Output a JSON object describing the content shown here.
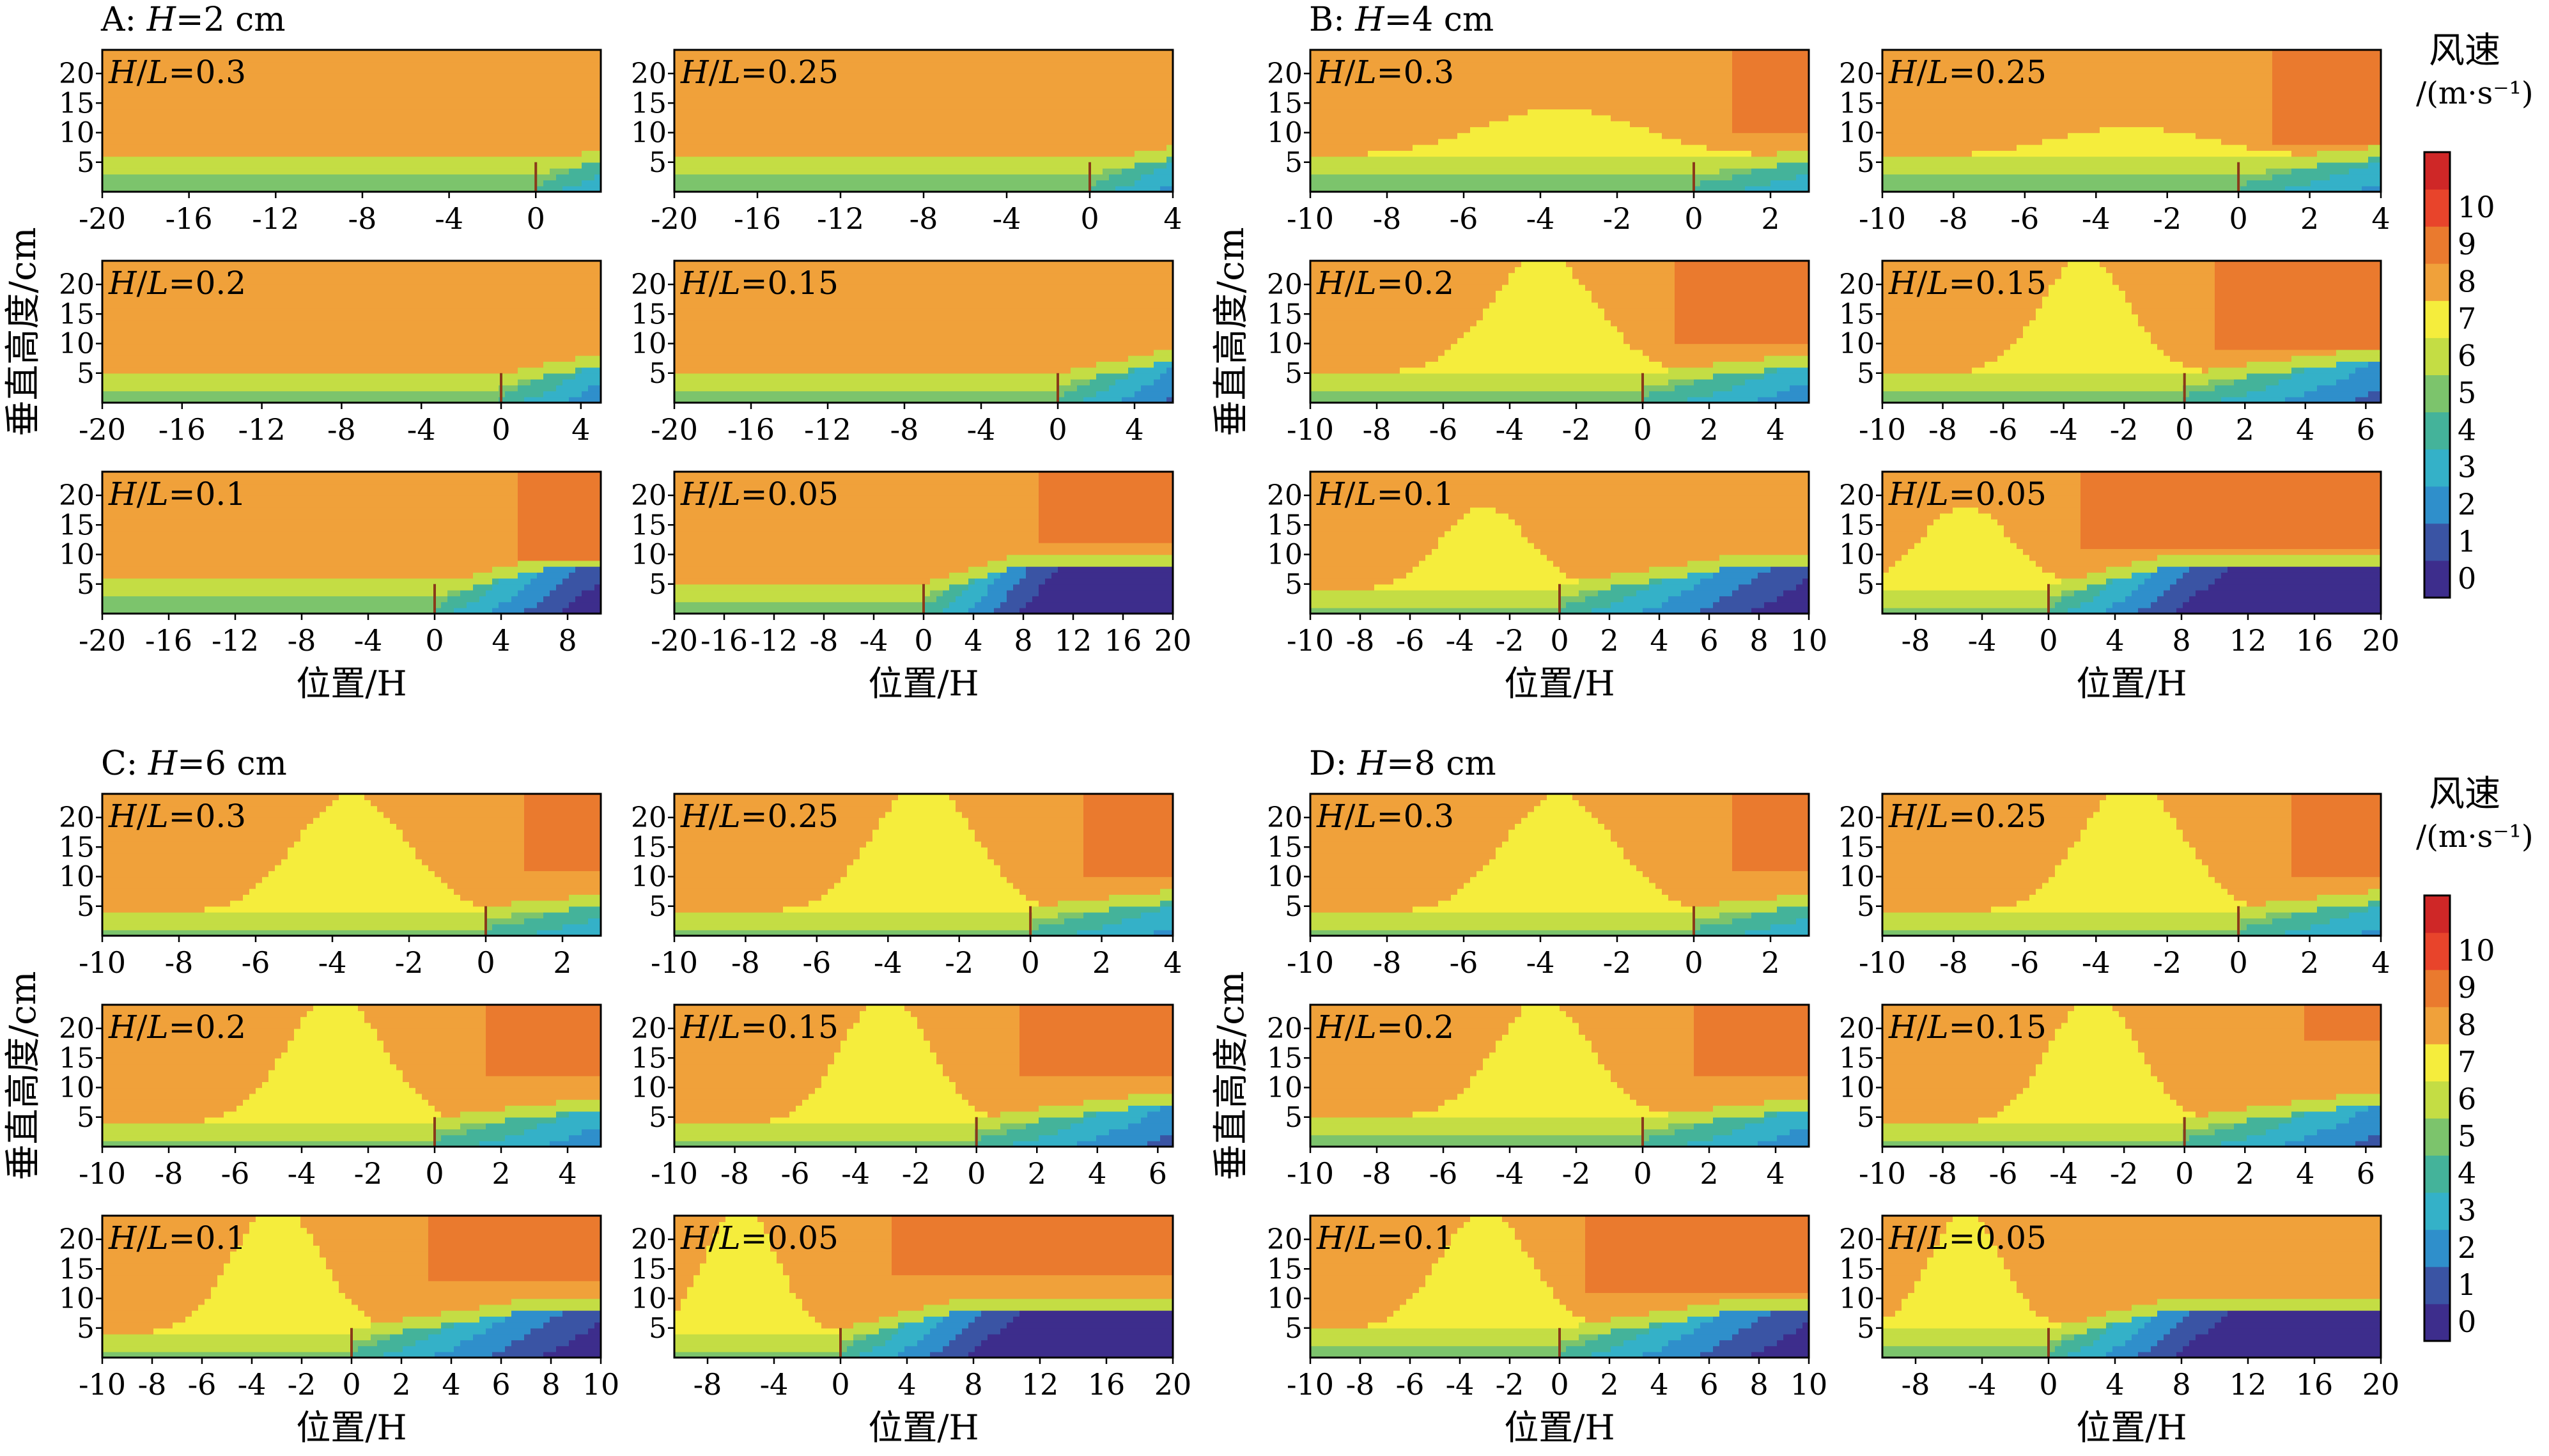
{
  "legend": {
    "title_line1": "风速",
    "title_line2": "/(m·s⁻¹)",
    "levels": [
      "0",
      "1",
      "2",
      "3",
      "4",
      "5",
      "6",
      "7",
      "8",
      "9",
      "10"
    ],
    "colors": [
      "#3d2d8c",
      "#3a54a4",
      "#2f8fcb",
      "#34b1c8",
      "#44b39a",
      "#7cc46c",
      "#c4dd44",
      "#f5ed3c",
      "#f0a13a",
      "#ea7a2e",
      "#e8442b",
      "#cf2727"
    ]
  },
  "chart_data": [
    {
      "type": "heatmap",
      "group": "A",
      "title": "A: H=2 cm",
      "ylabel": "垂直高度/cm",
      "xlabel": "位置/H",
      "yticks": [
        "5",
        "10",
        "15",
        "20"
      ],
      "ylim": [
        0,
        24
      ],
      "panels": [
        {
          "label": "H/L=0.3",
          "xlim": [
            -20,
            3
          ],
          "xticks": [
            "-20",
            "-16",
            "-12",
            "-8",
            "-4",
            "0"
          ],
          "fence_x": 0,
          "base_band_top": 6,
          "hill": {
            "center": -8,
            "width": 10,
            "amp": 0
          },
          "hot_x0": 99,
          "hot_y0": 30
        },
        {
          "label": "H/L=0.25",
          "xlim": [
            -20,
            4
          ],
          "xticks": [
            "-20",
            "-16",
            "-12",
            "-8",
            "-4",
            "0",
            "4"
          ],
          "fence_x": 0,
          "base_band_top": 6,
          "hill": {
            "center": -8,
            "width": 10,
            "amp": 0
          },
          "hot_x0": 99,
          "hot_y0": 30
        },
        {
          "label": "H/L=0.2",
          "xlim": [
            -20,
            5
          ],
          "xticks": [
            "-20",
            "-16",
            "-12",
            "-8",
            "-4",
            "0",
            "4"
          ],
          "fence_x": 0,
          "base_band_top": 5,
          "hill": {
            "center": -8,
            "width": 10,
            "amp": 0
          },
          "hot_x0": 99,
          "hot_y0": 30
        },
        {
          "label": "H/L=0.15",
          "xlim": [
            -20,
            6
          ],
          "xticks": [
            "-20",
            "-16",
            "-12",
            "-8",
            "-4",
            "0",
            "4"
          ],
          "fence_x": 0,
          "base_band_top": 5,
          "hill": {
            "center": -8,
            "width": 10,
            "amp": 0
          },
          "hot_x0": 99,
          "hot_y0": 30
        },
        {
          "label": "H/L=0.1",
          "xlim": [
            -20,
            10
          ],
          "xticks": [
            "-20",
            "-16",
            "-12",
            "-8",
            "-4",
            "0",
            "4",
            "8"
          ],
          "fence_x": 0,
          "base_band_top": 6,
          "hill": {
            "center": -8,
            "width": 10,
            "amp": 0
          },
          "hot_x0": 5,
          "hot_y0": 9
        },
        {
          "label": "H/L=0.05",
          "xlim": [
            -20,
            20
          ],
          "xticks": [
            "-20",
            "-16",
            "-12",
            "-8",
            "-4",
            "0",
            "4",
            "8",
            "12",
            "16",
            "20"
          ],
          "fence_x": 0,
          "base_band_top": 5,
          "hill": {
            "center": -8,
            "width": 10,
            "amp": 0
          },
          "hot_x0": 9,
          "hot_y0": 12
        }
      ]
    },
    {
      "type": "heatmap",
      "group": "B",
      "title": "B: H=4 cm",
      "ylabel": "垂直高度/cm",
      "xlabel": "位置/H",
      "yticks": [
        "5",
        "10",
        "15",
        "20"
      ],
      "ylim": [
        0,
        24
      ],
      "panels": [
        {
          "label": "H/L=0.3",
          "xlim": [
            -10,
            3
          ],
          "xticks": [
            "-10",
            "-8",
            "-6",
            "-4",
            "-2",
            "0",
            "2"
          ],
          "fence_x": 0,
          "base_band_top": 6,
          "hill": {
            "center": -3.5,
            "width": 3,
            "amp": 8
          },
          "hot_x0": 1,
          "hot_y0": 10
        },
        {
          "label": "H/L=0.25",
          "xlim": [
            -10,
            4
          ],
          "xticks": [
            "-10",
            "-8",
            "-6",
            "-4",
            "-2",
            "0",
            "2",
            "4"
          ],
          "fence_x": 0,
          "base_band_top": 6,
          "hill": {
            "center": -3,
            "width": 3,
            "amp": 5
          },
          "hot_x0": 1,
          "hot_y0": 8
        },
        {
          "label": "H/L=0.2",
          "xlim": [
            -10,
            5
          ],
          "xticks": [
            "-10",
            "-8",
            "-6",
            "-4",
            "-2",
            "0",
            "2",
            "4"
          ],
          "fence_x": 0,
          "base_band_top": 5,
          "hill": {
            "center": -3,
            "width": 2.2,
            "amp": 20
          },
          "hot_x0": 1,
          "hot_y0": 10
        },
        {
          "label": "H/L=0.15",
          "xlim": [
            -10,
            6.5
          ],
          "xticks": [
            "-10",
            "-8",
            "-6",
            "-4",
            "-2",
            "0",
            "2",
            "4",
            "6"
          ],
          "fence_x": 0,
          "base_band_top": 5,
          "hill": {
            "center": -3.3,
            "width": 2,
            "amp": 20
          },
          "hot_x0": 1,
          "hot_y0": 9
        },
        {
          "label": "H/L=0.1",
          "xlim": [
            -10,
            10
          ],
          "xticks": [
            "-10",
            "-8",
            "-6",
            "-4",
            "-2",
            "0",
            "2",
            "4",
            "6",
            "8",
            "10"
          ],
          "fence_x": 0,
          "base_band_top": 4,
          "hill": {
            "center": -3,
            "width": 2.5,
            "amp": 14
          },
          "hot_x0": 99,
          "hot_y0": 30
        },
        {
          "label": "H/L=0.05",
          "xlim": [
            -10,
            20
          ],
          "xticks": [
            "-8",
            "-4",
            "0",
            "4",
            "8",
            "12",
            "16",
            "20"
          ],
          "fence_x": 0,
          "base_band_top": 4,
          "hill": {
            "center": -5,
            "width": 4,
            "amp": 14
          },
          "hot_x0": 2,
          "hot_y0": 11
        }
      ]
    },
    {
      "type": "heatmap",
      "group": "C",
      "title": "C: H=6 cm",
      "ylabel": "垂直高度/cm",
      "xlabel": "位置/H",
      "yticks": [
        "5",
        "10",
        "15",
        "20"
      ],
      "ylim": [
        0,
        24
      ],
      "panels": [
        {
          "label": "H/L=0.3",
          "xlim": [
            -10,
            3
          ],
          "xticks": [
            "-10",
            "-8",
            "-6",
            "-4",
            "-2",
            "0",
            "2"
          ],
          "fence_x": 0,
          "base_band_top": 4,
          "hill": {
            "center": -3.5,
            "width": 2,
            "amp": 20
          },
          "hot_x0": 1,
          "hot_y0": 11
        },
        {
          "label": "H/L=0.25",
          "xlim": [
            -10,
            4
          ],
          "xticks": [
            "-10",
            "-8",
            "-6",
            "-4",
            "-2",
            "0",
            "2",
            "4"
          ],
          "fence_x": 0,
          "base_band_top": 4,
          "hill": {
            "center": -3,
            "width": 2,
            "amp": 22
          },
          "hot_x0": 1.5,
          "hot_y0": 10
        },
        {
          "label": "H/L=0.2",
          "xlim": [
            -10,
            5
          ],
          "xticks": [
            "-10",
            "-8",
            "-6",
            "-4",
            "-2",
            "0",
            "2",
            "4"
          ],
          "fence_x": 0,
          "base_band_top": 4,
          "hill": {
            "center": -3,
            "width": 2,
            "amp": 22
          },
          "hot_x0": 1.5,
          "hot_y0": 12
        },
        {
          "label": "H/L=0.15",
          "xlim": [
            -10,
            6.5
          ],
          "xticks": [
            "-10",
            "-8",
            "-6",
            "-4",
            "-2",
            "0",
            "2",
            "4",
            "6"
          ],
          "fence_x": 0,
          "base_band_top": 4,
          "hill": {
            "center": -3,
            "width": 2,
            "amp": 22
          },
          "hot_x0": 1.5,
          "hot_y0": 12
        },
        {
          "label": "H/L=0.1",
          "xlim": [
            -10,
            10
          ],
          "xticks": [
            "-10",
            "-8",
            "-6",
            "-4",
            "-2",
            "0",
            "2",
            "4",
            "6",
            "8",
            "10"
          ],
          "fence_x": 0,
          "base_band_top": 4,
          "hill": {
            "center": -3,
            "width": 2.5,
            "amp": 22
          },
          "hot_x0": 3,
          "hot_y0": 13
        },
        {
          "label": "H/L=0.05",
          "xlim": [
            -10,
            20
          ],
          "xticks": [
            "-8",
            "-4",
            "0",
            "4",
            "8",
            "12",
            "16",
            "20"
          ],
          "fence_x": 0,
          "base_band_top": 4,
          "hill": {
            "center": -6,
            "width": 3,
            "amp": 22
          },
          "hot_x0": 3,
          "hot_y0": 14
        }
      ]
    },
    {
      "type": "heatmap",
      "group": "D",
      "title": "D: H=8 cm",
      "ylabel": "垂直高度/cm",
      "xlabel": "位置/H",
      "yticks": [
        "5",
        "10",
        "15",
        "20"
      ],
      "ylim": [
        0,
        24
      ],
      "panels": [
        {
          "label": "H/L=0.3",
          "xlim": [
            -10,
            3
          ],
          "xticks": [
            "-10",
            "-8",
            "-6",
            "-4",
            "-2",
            "0",
            "2"
          ],
          "fence_x": 0,
          "base_band_top": 4,
          "hill": {
            "center": -3.5,
            "width": 2,
            "amp": 20
          },
          "hot_x0": 1,
          "hot_y0": 11
        },
        {
          "label": "H/L=0.25",
          "xlim": [
            -10,
            4
          ],
          "xticks": [
            "-10",
            "-8",
            "-6",
            "-4",
            "-2",
            "0",
            "2",
            "4"
          ],
          "fence_x": 0,
          "base_band_top": 4,
          "hill": {
            "center": -3,
            "width": 2,
            "amp": 22
          },
          "hot_x0": 1.5,
          "hot_y0": 10
        },
        {
          "label": "H/L=0.2",
          "xlim": [
            -10,
            5
          ],
          "xticks": [
            "-10",
            "-8",
            "-6",
            "-4",
            "-2",
            "0",
            "2",
            "4"
          ],
          "fence_x": 0,
          "base_band_top": 5,
          "hill": {
            "center": -3,
            "width": 2,
            "amp": 20
          },
          "hot_x0": 1.5,
          "hot_y0": 12
        },
        {
          "label": "H/L=0.15",
          "xlim": [
            -10,
            6.5
          ],
          "xticks": [
            "-10",
            "-8",
            "-6",
            "-4",
            "-2",
            "0",
            "2",
            "4",
            "6"
          ],
          "fence_x": 0,
          "base_band_top": 4,
          "hill": {
            "center": -3,
            "width": 2,
            "amp": 22
          },
          "hot_x0": 4,
          "hot_y0": 18
        },
        {
          "label": "H/L=0.1",
          "xlim": [
            -10,
            10
          ],
          "xticks": [
            "-10",
            "-8",
            "-6",
            "-4",
            "-2",
            "0",
            "2",
            "4",
            "6",
            "8",
            "10"
          ],
          "fence_x": 0,
          "base_band_top": 5,
          "hill": {
            "center": -3,
            "width": 2.5,
            "amp": 20
          },
          "hot_x0": 1,
          "hot_y0": 11
        },
        {
          "label": "H/L=0.05",
          "xlim": [
            -10,
            20
          ],
          "xticks": [
            "-8",
            "-4",
            "0",
            "4",
            "8",
            "12",
            "16",
            "20"
          ],
          "fence_x": 0,
          "base_band_top": 5,
          "hill": {
            "center": -5,
            "width": 3,
            "amp": 20
          },
          "hot_x0": 99,
          "hot_y0": 30
        }
      ]
    }
  ]
}
